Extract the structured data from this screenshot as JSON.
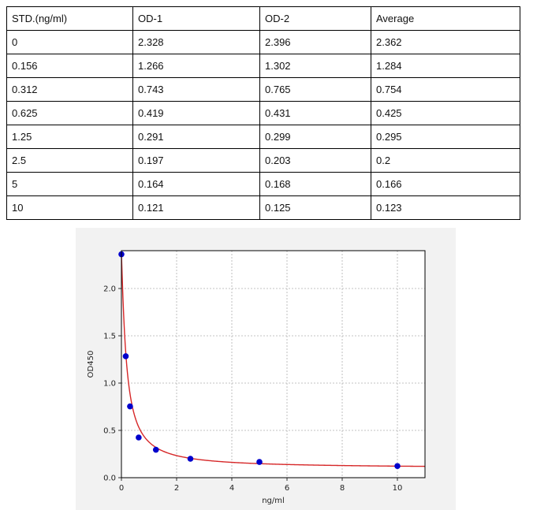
{
  "table": {
    "headers": [
      "STD.(ng/ml)",
      "OD-1",
      "OD-2",
      "Average"
    ],
    "rows": [
      [
        "0",
        "2.328",
        "2.396",
        "2.362"
      ],
      [
        "0.156",
        "1.266",
        "1.302",
        "1.284"
      ],
      [
        "0.312",
        "0.743",
        "0.765",
        "0.754"
      ],
      [
        "0.625",
        "0.419",
        "0.431",
        "0.425"
      ],
      [
        "1.25",
        "0.291",
        "0.299",
        "0.295"
      ],
      [
        "2.5",
        "0.197",
        "0.203",
        "0.2"
      ],
      [
        "5",
        "0.164",
        "0.168",
        "0.166"
      ],
      [
        "10",
        "0.121",
        "0.125",
        "0.123"
      ]
    ]
  },
  "chart_data": {
    "type": "scatter",
    "title": "",
    "xlabel": "ng/ml",
    "ylabel": "OD450",
    "xlim": [
      0,
      11
    ],
    "ylim": [
      0,
      2.4
    ],
    "x_ticks": [
      "0",
      "2",
      "4",
      "6",
      "8",
      "10"
    ],
    "y_ticks": [
      "0.0",
      "0.5",
      "1.0",
      "1.5",
      "2.0"
    ],
    "grid": true,
    "series": [
      {
        "type": "scatter",
        "x": [
          0,
          0.156,
          0.312,
          0.625,
          1.25,
          2.5,
          5,
          10
        ],
        "y": [
          2.362,
          1.284,
          0.754,
          0.425,
          0.295,
          0.2,
          0.166,
          0.123
        ],
        "color": "#0000cc"
      },
      {
        "type": "line",
        "color": "#d62728"
      }
    ]
  }
}
